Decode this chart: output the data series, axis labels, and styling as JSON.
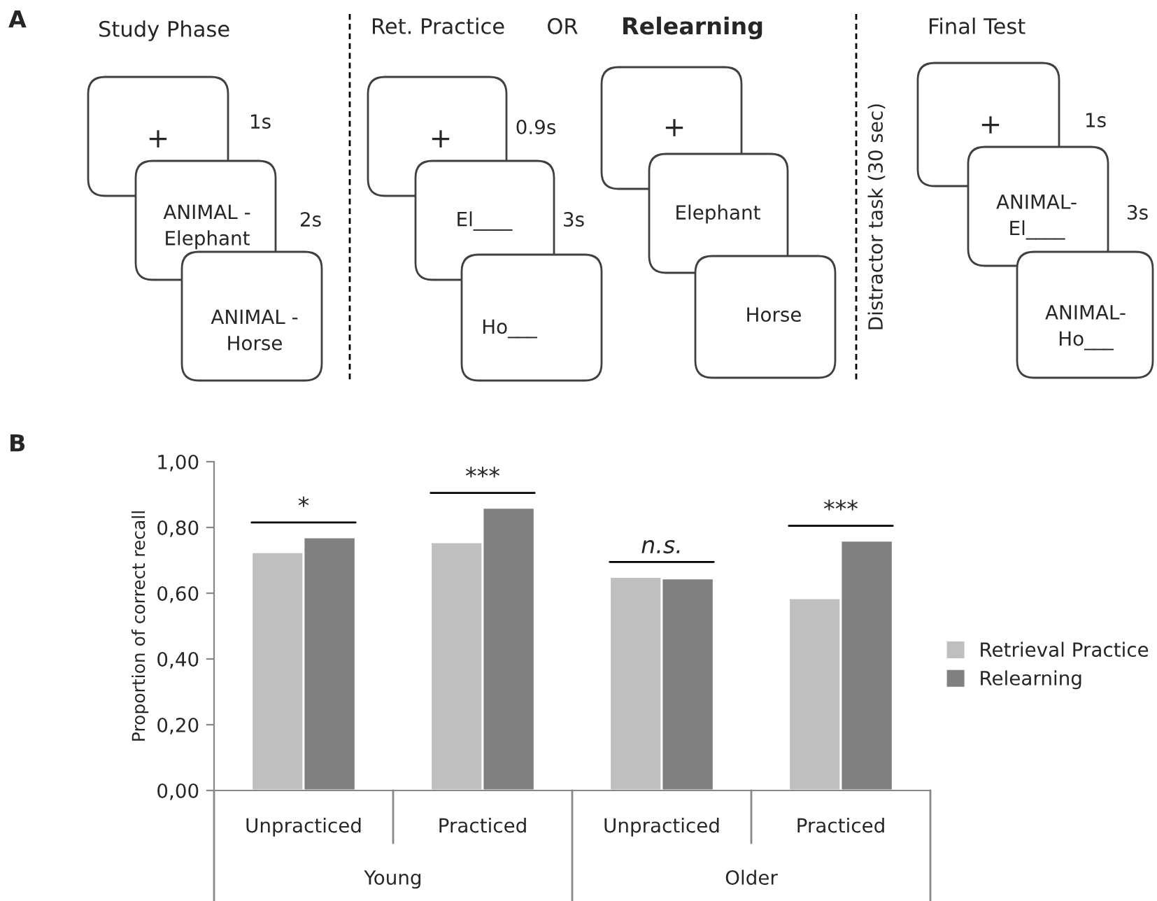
{
  "chart_data": [
    {
      "type": "other",
      "title": "A",
      "annotations": [
        "Study Phase",
        "+",
        "1s",
        "ANIMAL -\nElephant",
        "2s",
        "ANIMAL -\nHorse",
        "Ret. Practice",
        "OR",
        "Relearning",
        "+",
        "0.9s",
        "El____",
        "3s",
        "Ho___",
        "+",
        "Elephant",
        "Horse",
        "Distractor task (30 sec)",
        "Final Test",
        "+",
        "1s",
        "ANIMAL-\nEl____",
        "3s",
        "ANIMAL-\nHo___"
      ]
    },
    {
      "type": "bar",
      "title": "B",
      "ylabel": "Proportion of correct recall",
      "categories": [
        "Unpracticed",
        "Practiced",
        "Unpracticed",
        "Practiced"
      ],
      "series": [
        {
          "name": "Retrieval Practice",
          "color": "#bfbfbf",
          "values": [
            0.725,
            0.755,
            0.65,
            0.585
          ]
        },
        {
          "name": "Relearning",
          "color": "#808080",
          "values": [
            0.77,
            0.86,
            0.645,
            0.76
          ]
        }
      ],
      "ylim": [
        0,
        1
      ],
      "yticks": [
        {
          "value": 0,
          "label": "0,00"
        },
        {
          "value": 0.2,
          "label": "0,20"
        },
        {
          "value": 0.4,
          "label": "0,40"
        },
        {
          "value": 0.6,
          "label": "0,60"
        },
        {
          "value": 0.8,
          "label": "0,80"
        },
        {
          "value": 1,
          "label": "1,00"
        }
      ],
      "grid": false,
      "legend": "right",
      "annotations": [
        "*",
        "***",
        "n.s.",
        "***",
        "Young",
        "Older"
      ]
    }
  ]
}
